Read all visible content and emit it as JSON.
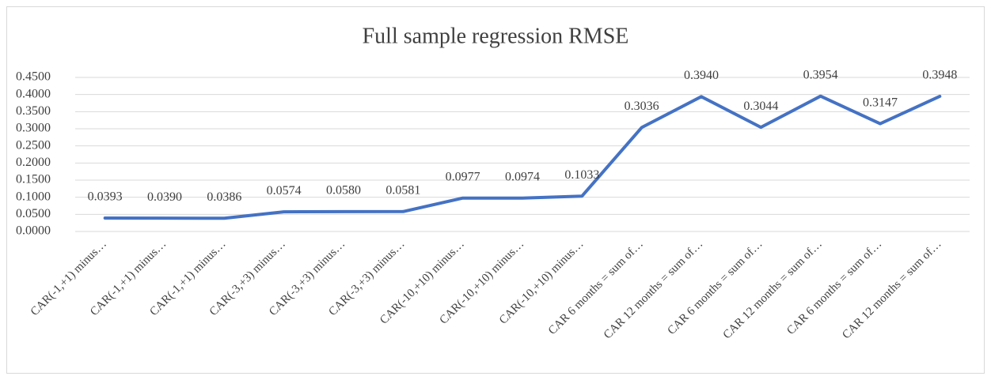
{
  "chart_data": {
    "type": "line",
    "title": "Full sample regression RMSE",
    "categories": [
      "CAR(-1,+1) minus…",
      "CAR(-1,+1) minus…",
      "CAR(-1,+1) minus…",
      "CAR(-3,+3) minus…",
      "CAR(-3,+3) minus…",
      "CAR(-3,+3) minus…",
      "CAR(-10,+10) minus…",
      "CAR(-10,+10) minus…",
      "CAR(-10,+10) minus…",
      "CAR 6 months = sum of…",
      "CAR 12 months = sum of…",
      "CAR 6 months = sum of…",
      "CAR 12 months = sum of…",
      "CAR 6 months = sum of…",
      "CAR 12 months = sum of…"
    ],
    "values": [
      0.0393,
      0.039,
      0.0386,
      0.0574,
      0.058,
      0.0581,
      0.0977,
      0.0974,
      0.1033,
      0.3036,
      0.394,
      0.3044,
      0.3954,
      0.3147,
      0.3948
    ],
    "value_labels": [
      "0.0393",
      "0.0390",
      "0.0386",
      "0.0574",
      "0.0580",
      "0.0581",
      "0.0977",
      "0.0974",
      "0.1033",
      "0.3036",
      "0.3940",
      "0.3044",
      "0.3954",
      "0.3147",
      "0.3948"
    ],
    "color": "#4472c4",
    "ylim": [
      0,
      0.45
    ],
    "yticks": [
      {
        "value": 0,
        "label": "0.0000"
      },
      {
        "value": 0.05,
        "label": "0.0500"
      },
      {
        "value": 0.1,
        "label": "0.1000"
      },
      {
        "value": 0.15,
        "label": "0.1500"
      },
      {
        "value": 0.2,
        "label": "0.2000"
      },
      {
        "value": 0.25,
        "label": "0.2500"
      },
      {
        "value": 0.3,
        "label": "0.3000"
      },
      {
        "value": 0.35,
        "label": "0.3500"
      },
      {
        "value": 0.4,
        "label": "0.4000"
      },
      {
        "value": 0.45,
        "label": "0.4500"
      }
    ],
    "grid": true
  }
}
